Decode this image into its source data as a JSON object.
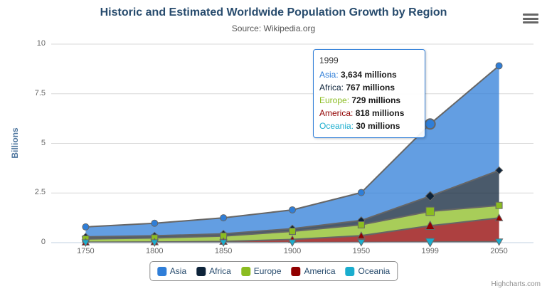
{
  "credits": "Highcharts.com",
  "tooltip": {
    "header": "1999",
    "border_color": "#2f7ed8",
    "rows": [
      {
        "name": "Asia",
        "color": "#2f7ed8",
        "value": "3,634 millions"
      },
      {
        "name": "Africa",
        "color": "#0d233a",
        "value": "767 millions"
      },
      {
        "name": "Europe",
        "color": "#8bbc21",
        "value": "729 millions"
      },
      {
        "name": "America",
        "color": "#910000",
        "value": "818 millions"
      },
      {
        "name": "Oceania",
        "color": "#1aadce",
        "value": "30 millions"
      }
    ]
  },
  "chart_data": {
    "type": "area",
    "stacking": "normal",
    "title": "Historic and Estimated Worldwide Population Growth by Region",
    "subtitle": "Source: Wikipedia.org",
    "xlabel": "",
    "ylabel": "Billions",
    "ylim": [
      0,
      10
    ],
    "yticks": [
      0,
      2.5,
      5,
      7.5,
      10
    ],
    "grid": "horizontal",
    "legend_position": "bottom",
    "line_color": "#666666",
    "grid_color": "#d8d8d8",
    "axis_line_color": "#c0d0e0",
    "value_unit": "millions",
    "y_axis_unit": "billions",
    "categories": [
      "1750",
      "1800",
      "1850",
      "1900",
      "1950",
      "1999",
      "2050"
    ],
    "series": [
      {
        "name": "Asia",
        "color": "#2f7ed8",
        "marker": "circle",
        "values": [
          502,
          635,
          809,
          947,
          1402,
          3634,
          5268
        ]
      },
      {
        "name": "Africa",
        "color": "#0d233a",
        "marker": "diamond",
        "values": [
          106,
          107,
          111,
          133,
          221,
          767,
          1766
        ]
      },
      {
        "name": "Europe",
        "color": "#8bbc21",
        "marker": "square",
        "values": [
          163,
          203,
          276,
          408,
          547,
          729,
          628
        ]
      },
      {
        "name": "America",
        "color": "#910000",
        "marker": "triangle",
        "values": [
          18,
          31,
          54,
          156,
          339,
          818,
          1201
        ]
      },
      {
        "name": "Oceania",
        "color": "#1aadce",
        "marker": "triangle-down",
        "values": [
          2,
          2,
          2,
          6,
          13,
          30,
          46
        ]
      }
    ],
    "hover": {
      "series": "Asia",
      "category": "1999",
      "category_index": 5
    }
  }
}
